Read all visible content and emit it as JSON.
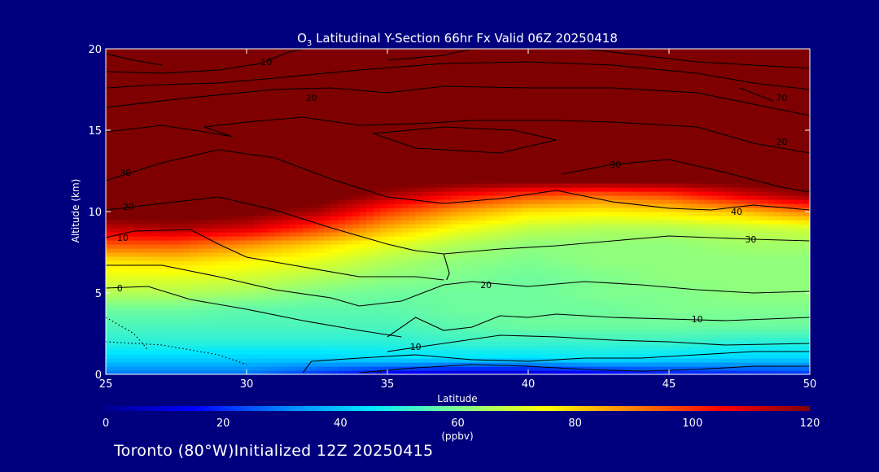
{
  "chart_data": {
    "type": "heatmap",
    "title": "O3 Latitudinal Y-Section 66hr  Fx Valid 06Z 20250418",
    "title_main": "O",
    "title_sub": "3",
    "title_rest": " Latitudinal Y-Section 66hr  Fx Valid 06Z 20250418",
    "xlabel": "Latitude",
    "ylabel": "Altitude (km)",
    "xlim": [
      25,
      50
    ],
    "ylim": [
      0,
      20
    ],
    "x_ticks": [
      25,
      30,
      35,
      40,
      45,
      50
    ],
    "y_ticks": [
      0,
      5,
      10,
      15,
      20
    ],
    "colorbar": {
      "range": [
        0,
        120
      ],
      "ticks": [
        0,
        20,
        40,
        60,
        80,
        100,
        120
      ],
      "unit_label": "(ppbv)",
      "colormap": [
        "#00008f",
        "#0000ff",
        "#0080ff",
        "#00e8ff",
        "#7fff8f",
        "#ffff00",
        "#ff8000",
        "#ff0000",
        "#7f0000"
      ]
    },
    "field": {
      "x": [
        25,
        27.5,
        30,
        32.5,
        35,
        37.5,
        40,
        42.5,
        45,
        47.5,
        50
      ],
      "y": [
        0,
        1,
        2,
        3,
        4,
        5,
        6,
        7,
        8,
        9,
        10,
        11,
        12,
        14,
        16,
        18,
        20
      ],
      "z": [
        [
          28,
          28,
          28,
          20,
          12,
          6,
          6,
          12,
          16,
          18,
          20
        ],
        [
          42,
          42,
          42,
          42,
          44,
          44,
          44,
          46,
          44,
          42,
          42
        ],
        [
          50,
          50,
          50,
          50,
          50,
          52,
          52,
          52,
          52,
          50,
          50
        ],
        [
          54,
          54,
          54,
          54,
          54,
          56,
          58,
          58,
          58,
          58,
          58
        ],
        [
          58,
          58,
          56,
          56,
          56,
          58,
          58,
          58,
          60,
          60,
          60
        ],
        [
          66,
          66,
          64,
          60,
          58,
          58,
          58,
          60,
          60,
          62,
          62
        ],
        [
          72,
          72,
          70,
          66,
          62,
          60,
          58,
          60,
          62,
          62,
          62
        ],
        [
          78,
          80,
          76,
          72,
          66,
          62,
          60,
          62,
          62,
          62,
          62
        ],
        [
          95,
          95,
          88,
          80,
          72,
          66,
          62,
          62,
          62,
          64,
          64
        ],
        [
          112,
          115,
          110,
          98,
          84,
          74,
          68,
          66,
          66,
          68,
          70
        ],
        [
          125,
          125,
          122,
          115,
          98,
          86,
          78,
          76,
          78,
          82,
          90
        ],
        [
          125,
          125,
          125,
          125,
          115,
          104,
          96,
          92,
          96,
          108,
          118
        ],
        [
          125,
          125,
          125,
          125,
          125,
          125,
          125,
          125,
          125,
          125,
          125
        ],
        [
          125,
          125,
          125,
          125,
          125,
          125,
          125,
          125,
          125,
          125,
          125
        ],
        [
          125,
          125,
          125,
          125,
          125,
          125,
          125,
          125,
          125,
          125,
          125
        ],
        [
          125,
          125,
          125,
          125,
          125,
          125,
          125,
          125,
          125,
          125,
          125
        ],
        [
          125,
          125,
          125,
          125,
          125,
          125,
          125,
          125,
          125,
          125,
          125
        ]
      ]
    },
    "contours": [
      {
        "label": "0",
        "label_at": [
          34.6,
          0.05
        ],
        "points": [
          [
            34,
            0.1
          ],
          [
            36,
            0.4
          ],
          [
            38,
            0.6
          ],
          [
            40,
            0.5
          ],
          [
            42,
            0.3
          ],
          [
            44,
            0.2
          ],
          [
            46,
            0.3
          ],
          [
            48,
            0.5
          ],
          [
            50,
            0.5
          ]
        ]
      },
      {
        "label": "",
        "points": [
          [
            25,
            2.0
          ],
          [
            27,
            1.8
          ],
          [
            29,
            1.2
          ],
          [
            30,
            0.6
          ]
        ],
        "dotted": true
      },
      {
        "label": "",
        "points": [
          [
            25,
            3.5
          ],
          [
            26,
            2.5
          ],
          [
            26.5,
            1.5
          ]
        ],
        "dotted": true
      },
      {
        "label": "10",
        "label_at": [
          35.8,
          1.7
        ],
        "points": [
          [
            32,
            0.1
          ],
          [
            32.3,
            0.8
          ],
          [
            34,
            1.0
          ],
          [
            36,
            1.2
          ],
          [
            38,
            0.9
          ],
          [
            40,
            0.8
          ],
          [
            42,
            1.0
          ],
          [
            44,
            1.0
          ],
          [
            46,
            1.2
          ],
          [
            48,
            1.4
          ],
          [
            50,
            1.4
          ]
        ]
      },
      {
        "label": "10",
        "label_at": [
          45.8,
          3.4
        ],
        "points": [
          [
            35,
            2.3
          ],
          [
            36,
            3.5
          ],
          [
            37,
            2.7
          ],
          [
            38,
            2.9
          ],
          [
            39,
            3.6
          ],
          [
            40,
            3.5
          ],
          [
            41,
            3.7
          ],
          [
            43,
            3.5
          ],
          [
            45,
            3.4
          ],
          [
            47,
            3.3
          ],
          [
            50,
            3.5
          ]
        ]
      },
      {
        "label": "",
        "points": [
          [
            35,
            1.4
          ],
          [
            37,
            1.9
          ],
          [
            39,
            2.4
          ],
          [
            41,
            2.3
          ],
          [
            43,
            2.1
          ],
          [
            45,
            2.0
          ],
          [
            47,
            1.8
          ],
          [
            50,
            1.9
          ]
        ]
      },
      {
        "label": "0",
        "label_at": [
          25.4,
          5.3
        ],
        "points": [
          [
            25,
            5.3
          ],
          [
            26.5,
            5.4
          ],
          [
            28,
            4.6
          ],
          [
            30,
            4.0
          ],
          [
            32,
            3.3
          ],
          [
            34,
            2.7
          ],
          [
            35.5,
            2.3
          ]
        ]
      },
      {
        "label": "20",
        "label_at": [
          38.3,
          5.5
        ],
        "points": [
          [
            34,
            4.2
          ],
          [
            35.5,
            4.5
          ],
          [
            37,
            5.5
          ],
          [
            38,
            5.7
          ],
          [
            40,
            5.4
          ],
          [
            42,
            5.7
          ],
          [
            44,
            5.5
          ],
          [
            46,
            5.2
          ],
          [
            48,
            5.0
          ],
          [
            50,
            5.1
          ]
        ]
      },
      {
        "label": "",
        "points": [
          [
            25,
            6.7
          ],
          [
            27,
            6.7
          ],
          [
            29,
            6.0
          ],
          [
            31,
            5.2
          ],
          [
            33,
            4.7
          ],
          [
            34,
            4.2
          ]
        ]
      },
      {
        "label": "10",
        "label_at": [
          25.4,
          8.4
        ],
        "points": [
          [
            25,
            8.4
          ],
          [
            26,
            8.8
          ],
          [
            28,
            8.9
          ],
          [
            29,
            8.0
          ],
          [
            30,
            7.2
          ],
          [
            32,
            6.6
          ],
          [
            34,
            6.0
          ],
          [
            36,
            6.0
          ],
          [
            37,
            5.8
          ]
        ]
      },
      {
        "label": "30",
        "label_at": [
          47.7,
          8.3
        ],
        "points": [
          [
            37,
            7.4
          ],
          [
            39,
            7.7
          ],
          [
            41,
            7.9
          ],
          [
            43,
            8.2
          ],
          [
            45,
            8.5
          ],
          [
            48,
            8.3
          ],
          [
            50,
            8.2
          ]
        ]
      },
      {
        "label": "",
        "points": [
          [
            37,
            7.4
          ],
          [
            37.2,
            6.2
          ],
          [
            37.1,
            5.8
          ]
        ]
      },
      {
        "label": "20",
        "label_at": [
          25.6,
          10.3
        ],
        "points": [
          [
            25,
            10.1
          ],
          [
            27,
            10.5
          ],
          [
            29,
            10.9
          ],
          [
            31,
            10.1
          ],
          [
            33,
            9.0
          ],
          [
            35,
            8.0
          ],
          [
            36,
            7.6
          ],
          [
            37,
            7.4
          ]
        ]
      },
      {
        "label": "40",
        "label_at": [
          47.2,
          10.0
        ],
        "points": [
          [
            41,
            11.3
          ],
          [
            43,
            10.6
          ],
          [
            45,
            10.2
          ],
          [
            46.5,
            10.1
          ],
          [
            48,
            10.4
          ],
          [
            50,
            10.1
          ]
        ]
      },
      {
        "label": "",
        "points": [
          [
            35,
            10.9
          ],
          [
            37,
            10.5
          ],
          [
            39,
            10.8
          ],
          [
            41,
            11.3
          ]
        ]
      },
      {
        "label": "30",
        "label_at": [
          25.5,
          12.4
        ],
        "points": [
          [
            25,
            11.9
          ],
          [
            27,
            13.0
          ],
          [
            29,
            13.8
          ],
          [
            31,
            13.3
          ],
          [
            33,
            12.0
          ],
          [
            35,
            10.9
          ]
        ]
      },
      {
        "label": "30",
        "label_at": [
          42.9,
          12.9
        ],
        "points": [
          [
            41.2,
            12.3
          ],
          [
            43,
            12.9
          ],
          [
            45,
            13.2
          ],
          [
            47,
            12.4
          ],
          [
            49,
            11.5
          ],
          [
            50,
            11.2
          ]
        ]
      },
      {
        "label": "",
        "points": [
          [
            37,
            15.2
          ],
          [
            39.5,
            15.0
          ],
          [
            41,
            14.4
          ],
          [
            39,
            13.6
          ],
          [
            36,
            13.9
          ],
          [
            34.5,
            14.8
          ],
          [
            37,
            15.2
          ]
        ]
      },
      {
        "label": "",
        "points": [
          [
            25,
            14.9
          ],
          [
            27,
            15.3
          ],
          [
            28.5,
            14.9
          ],
          [
            29.5,
            14.6
          ],
          [
            28.5,
            15.2
          ],
          [
            30,
            15.5
          ],
          [
            32,
            15.8
          ],
          [
            34,
            15.3
          ],
          [
            36,
            15.4
          ],
          [
            38,
            15.6
          ],
          [
            41,
            15.6
          ],
          [
            43,
            15.5
          ],
          [
            46,
            15.2
          ],
          [
            48,
            14.2
          ],
          [
            50,
            13.6
          ]
        ]
      },
      {
        "label": "20",
        "label_at": [
          48.8,
          14.3
        ],
        "points": [
          [
            25,
            16.4
          ],
          [
            28,
            17.0
          ],
          [
            31,
            17.5
          ],
          [
            33,
            17.6
          ],
          [
            35,
            17.3
          ],
          [
            37,
            17.7
          ],
          [
            40,
            17.6
          ],
          [
            43,
            17.6
          ],
          [
            46,
            17.3
          ],
          [
            48,
            16.6
          ],
          [
            50,
            15.9
          ]
        ]
      },
      {
        "label": "20",
        "label_at": [
          32.1,
          17.0
        ],
        "points": [
          [
            25,
            17.6
          ],
          [
            27,
            17.8
          ],
          [
            29,
            17.9
          ],
          [
            31,
            18.2
          ],
          [
            34,
            18.7
          ],
          [
            37,
            19.1
          ],
          [
            40,
            19.2
          ],
          [
            43,
            19.0
          ],
          [
            46,
            18.5
          ],
          [
            48,
            17.9
          ],
          [
            50,
            17.5
          ]
        ]
      },
      {
        "label": "70",
        "label_at": [
          48.8,
          17.0
        ],
        "points": [
          [
            47.5,
            17.6
          ],
          [
            48.7,
            16.8
          ]
        ]
      },
      {
        "label": "10",
        "label_at": [
          30.5,
          19.2
        ],
        "points": [
          [
            25,
            18.6
          ],
          [
            27,
            18.5
          ],
          [
            29,
            18.7
          ],
          [
            30.5,
            19.1
          ],
          [
            31.5,
            19.8
          ],
          [
            32,
            20.0
          ]
        ]
      },
      {
        "label": "",
        "points": [
          [
            25,
            19.7
          ],
          [
            26,
            19.3
          ],
          [
            27,
            19.0
          ]
        ]
      },
      {
        "label": "",
        "points": [
          [
            35,
            19.3
          ],
          [
            37,
            19.6
          ],
          [
            38,
            20.0
          ]
        ]
      },
      {
        "label": "",
        "points": [
          [
            42,
            20.0
          ],
          [
            44,
            19.6
          ],
          [
            46,
            19.2
          ],
          [
            48,
            19.0
          ],
          [
            50,
            18.8
          ]
        ]
      }
    ]
  },
  "footer": {
    "text": "Toronto (80°W)Initialized 12Z 20250415"
  }
}
